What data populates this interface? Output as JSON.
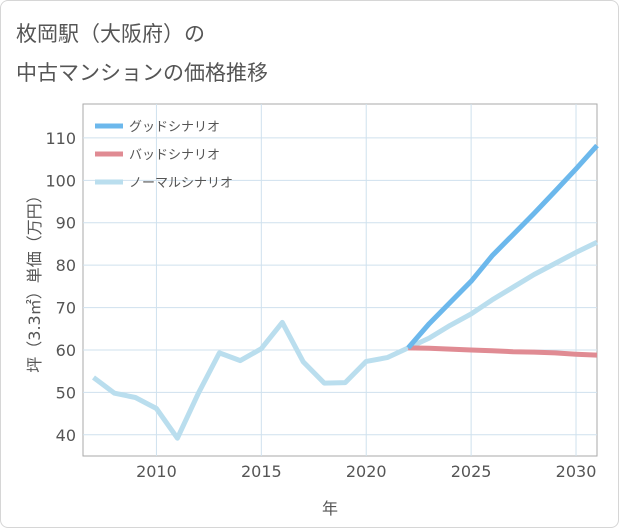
{
  "chart_data": {
    "type": "line",
    "title_lines": [
      "枚岡駅（大阪府）の",
      "中古マンションの価格推移"
    ],
    "xlabel": "年",
    "ylabel": "坪（3.3㎡）単価（万円）",
    "xlim": [
      2006.5,
      2031
    ],
    "ylim": [
      35,
      118
    ],
    "xticks": [
      2010,
      2015,
      2020,
      2025,
      2030
    ],
    "yticks": [
      40,
      50,
      60,
      70,
      80,
      90,
      100,
      110
    ],
    "grid": true,
    "legend_position": "top-left",
    "series": [
      {
        "name": "グッドシナリオ",
        "color": "#6cb8ec",
        "x": [
          2022,
          2023,
          2024,
          2025,
          2026,
          2027,
          2028,
          2029,
          2030,
          2031
        ],
        "values": [
          60.5,
          66.2,
          71.2,
          76.2,
          82.2,
          87.2,
          92.2,
          97.4,
          102.7,
          108.2
        ]
      },
      {
        "name": "バッドシナリオ",
        "color": "#e08b93",
        "x": [
          2022,
          2023,
          2024,
          2025,
          2026,
          2027,
          2028,
          2029,
          2030,
          2031
        ],
        "values": [
          60.5,
          60.4,
          60.2,
          60.0,
          59.8,
          59.6,
          59.5,
          59.3,
          59.0,
          58.8
        ]
      },
      {
        "name": "ノーマルシナリオ",
        "color": "#badeee",
        "x": [
          2007,
          2008,
          2009,
          2010,
          2011,
          2012,
          2013,
          2014,
          2015,
          2016,
          2017,
          2018,
          2019,
          2020,
          2021,
          2022,
          2023,
          2024,
          2025,
          2026,
          2027,
          2028,
          2029,
          2030,
          2031
        ],
        "values": [
          53.5,
          49.8,
          48.8,
          46.2,
          39.2,
          49.8,
          59.3,
          57.5,
          60.3,
          66.5,
          57.2,
          52.2,
          52.3,
          57.3,
          58.2,
          60.5,
          62.8,
          65.8,
          68.5,
          71.8,
          74.8,
          77.8,
          80.4,
          83.0,
          85.4
        ]
      }
    ]
  }
}
